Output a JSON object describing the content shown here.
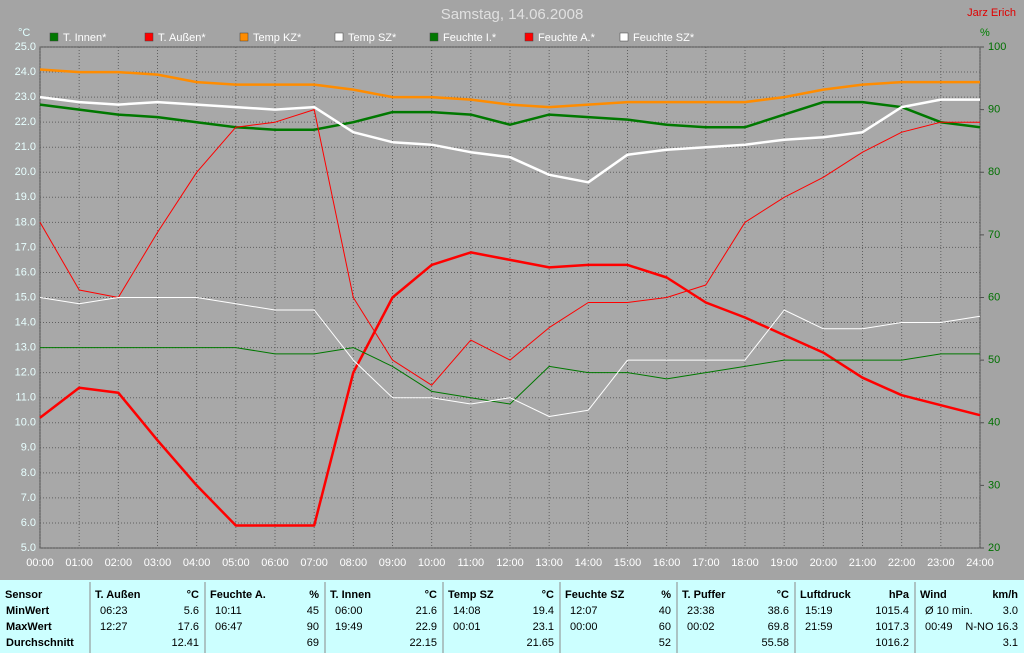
{
  "chart_data": {
    "type": "line",
    "title": "Samstag, 14.06.2008",
    "author": "Jarz Erich",
    "y_unit": "°C",
    "y2_unit": "%",
    "xlim": [
      0,
      24
    ],
    "xticks": [
      {
        "value": 0,
        "label": "00:00"
      },
      {
        "value": 1,
        "label": "01:00"
      },
      {
        "value": 2,
        "label": "02:00"
      },
      {
        "value": 3,
        "label": "03:00"
      },
      {
        "value": 4,
        "label": "04:00"
      },
      {
        "value": 5,
        "label": "05:00"
      },
      {
        "value": 6,
        "label": "06:00"
      },
      {
        "value": 7,
        "label": "07:00"
      },
      {
        "value": 8,
        "label": "08:00"
      },
      {
        "value": 9,
        "label": "09:00"
      },
      {
        "value": 10,
        "label": "10:00"
      },
      {
        "value": 11,
        "label": "11:00"
      },
      {
        "value": 12,
        "label": "12:00"
      },
      {
        "value": 13,
        "label": "13:00"
      },
      {
        "value": 14,
        "label": "14:00"
      },
      {
        "value": 15,
        "label": "15:00"
      },
      {
        "value": 16,
        "label": "16:00"
      },
      {
        "value": 17,
        "label": "17:00"
      },
      {
        "value": 18,
        "label": "18:00"
      },
      {
        "value": 19,
        "label": "19:00"
      },
      {
        "value": 20,
        "label": "20:00"
      },
      {
        "value": 21,
        "label": "21:00"
      },
      {
        "value": 22,
        "label": "22:00"
      },
      {
        "value": 23,
        "label": "23:00"
      },
      {
        "value": 24,
        "label": "24:00"
      }
    ],
    "ylim": [
      5,
      25
    ],
    "yticks": [
      {
        "value": 5,
        "label": "5.0"
      },
      {
        "value": 6,
        "label": "6.0"
      },
      {
        "value": 7,
        "label": "7.0"
      },
      {
        "value": 8,
        "label": "8.0"
      },
      {
        "value": 9,
        "label": "9.0"
      },
      {
        "value": 10,
        "label": "10.0"
      },
      {
        "value": 11,
        "label": "11.0"
      },
      {
        "value": 12,
        "label": "12.0"
      },
      {
        "value": 13,
        "label": "13.0"
      },
      {
        "value": 14,
        "label": "14.0"
      },
      {
        "value": 15,
        "label": "15.0"
      },
      {
        "value": 16,
        "label": "16.0"
      },
      {
        "value": 17,
        "label": "17.0"
      },
      {
        "value": 18,
        "label": "18.0"
      },
      {
        "value": 19,
        "label": "19.0"
      },
      {
        "value": 20,
        "label": "20.0"
      },
      {
        "value": 21,
        "label": "21.0"
      },
      {
        "value": 22,
        "label": "22.0"
      },
      {
        "value": 23,
        "label": "23.0"
      },
      {
        "value": 24,
        "label": "24.0"
      },
      {
        "value": 25,
        "label": "25.0"
      }
    ],
    "y2lim": [
      20,
      100
    ],
    "y2ticks": [
      20,
      30,
      40,
      50,
      60,
      70,
      80,
      90,
      100
    ],
    "grid": true,
    "x": [
      0,
      1,
      2,
      3,
      4,
      5,
      6,
      7,
      8,
      9,
      10,
      11,
      12,
      13,
      14,
      15,
      16,
      17,
      18,
      19,
      20,
      21,
      22,
      23,
      24
    ],
    "series": [
      {
        "name": "T. Innen*",
        "color": "#007800",
        "width": 2.5,
        "values": [
          22.7,
          22.5,
          22.3,
          22.2,
          22.0,
          21.8,
          21.7,
          21.7,
          22.0,
          22.4,
          22.4,
          22.3,
          21.9,
          22.3,
          22.2,
          22.1,
          21.9,
          21.8,
          21.8,
          22.3,
          22.8,
          22.8,
          22.6,
          22.0,
          21.8
        ]
      },
      {
        "name": "T. Außen*",
        "color": "#ff0000",
        "width": 2.5,
        "values": [
          10.2,
          11.4,
          11.2,
          9.3,
          7.5,
          5.9,
          5.9,
          5.9,
          12.0,
          15.0,
          16.3,
          16.8,
          16.5,
          16.2,
          16.3,
          16.3,
          15.8,
          14.8,
          14.2,
          13.5,
          12.8,
          11.8,
          11.1,
          10.7,
          10.3
        ]
      },
      {
        "name": "Temp KZ*",
        "color": "#ff8c00",
        "width": 2.5,
        "values": [
          24.1,
          24.0,
          24.0,
          23.9,
          23.6,
          23.5,
          23.5,
          23.5,
          23.3,
          23.0,
          23.0,
          22.9,
          22.7,
          22.6,
          22.7,
          22.8,
          22.8,
          22.8,
          22.8,
          23.0,
          23.3,
          23.5,
          23.6,
          23.6,
          23.6
        ]
      },
      {
        "name": "Temp SZ*",
        "color": "#ffffff",
        "width": 2.5,
        "values": [
          23.0,
          22.8,
          22.7,
          22.8,
          22.7,
          22.6,
          22.5,
          22.6,
          21.6,
          21.2,
          21.1,
          20.8,
          20.6,
          19.9,
          19.6,
          20.7,
          20.9,
          21.0,
          21.1,
          21.3,
          21.4,
          21.6,
          22.6,
          22.9,
          22.9
        ]
      },
      {
        "name": "Feuchte I.*",
        "color": "#007800",
        "width": 1,
        "axis": "y2",
        "values": [
          52,
          52,
          52,
          52,
          52,
          52,
          51,
          51,
          52,
          49,
          45,
          44,
          43,
          49,
          48,
          48,
          47,
          48,
          49,
          50,
          50,
          50,
          50,
          51,
          51
        ]
      },
      {
        "name": "Feuchte A.*",
        "color": "#ff0000",
        "width": 1,
        "axis": "y2",
        "values": [
          72,
          61.2,
          60,
          70.4,
          80,
          87.2,
          88,
          90,
          60,
          50,
          46,
          53.2,
          50,
          55.2,
          59.2,
          59.2,
          60,
          62,
          72,
          76,
          79.2,
          83.2,
          86.4,
          88,
          88
        ]
      },
      {
        "name": "Feuchte SZ*",
        "color": "#ffffff",
        "width": 1,
        "axis": "y2",
        "values": [
          60,
          59,
          60,
          60,
          60,
          59,
          58,
          58,
          50,
          44,
          44,
          43,
          44,
          41,
          42,
          50,
          50,
          50,
          50,
          58,
          55,
          55,
          56,
          56,
          57
        ]
      }
    ]
  },
  "table": {
    "columns": [
      {
        "name": "Sensor"
      },
      {
        "name": "T. Außen",
        "unit": "°C"
      },
      {
        "name": "Feuchte A.",
        "unit": "%"
      },
      {
        "name": "T. Innen",
        "unit": "°C"
      },
      {
        "name": "Temp SZ",
        "unit": "°C"
      },
      {
        "name": "Feuchte SZ",
        "unit": "%"
      },
      {
        "name": "T. Puffer",
        "unit": "°C"
      },
      {
        "name": "Luftdruck",
        "unit": "hPa"
      },
      {
        "name": "Wind",
        "unit": "km/h"
      }
    ],
    "rows": [
      {
        "label": "MinWert",
        "cells": [
          {
            "time": "06:23",
            "value": "5.6"
          },
          {
            "time": "10:11",
            "value": "45"
          },
          {
            "time": "06:00",
            "value": "21.6"
          },
          {
            "time": "14:08",
            "value": "19.4"
          },
          {
            "time": "12:07",
            "value": "40"
          },
          {
            "time": "23:38",
            "value": "38.6"
          },
          {
            "time": "15:19",
            "value": "1015.4"
          },
          {
            "time": "Ø 10 min.",
            "value": "3.0"
          }
        ]
      },
      {
        "label": "MaxWert",
        "cells": [
          {
            "time": "12:27",
            "value": "17.6"
          },
          {
            "time": "06:47",
            "value": "90"
          },
          {
            "time": "19:49",
            "value": "22.9"
          },
          {
            "time": "00:01",
            "value": "23.1"
          },
          {
            "time": "00:00",
            "value": "60"
          },
          {
            "time": "00:02",
            "value": "69.8"
          },
          {
            "time": "21:59",
            "value": "1017.3"
          },
          {
            "time": "00:49",
            "value": "N-NO 16.3"
          }
        ]
      },
      {
        "label": "Durchschnitt",
        "cells": [
          {
            "value": "12.41"
          },
          {
            "value": "69"
          },
          {
            "value": "22.15"
          },
          {
            "value": "21.65"
          },
          {
            "value": "52"
          },
          {
            "value": "55.58"
          },
          {
            "value": "1016.2"
          },
          {
            "value": "3.1"
          }
        ]
      }
    ]
  }
}
